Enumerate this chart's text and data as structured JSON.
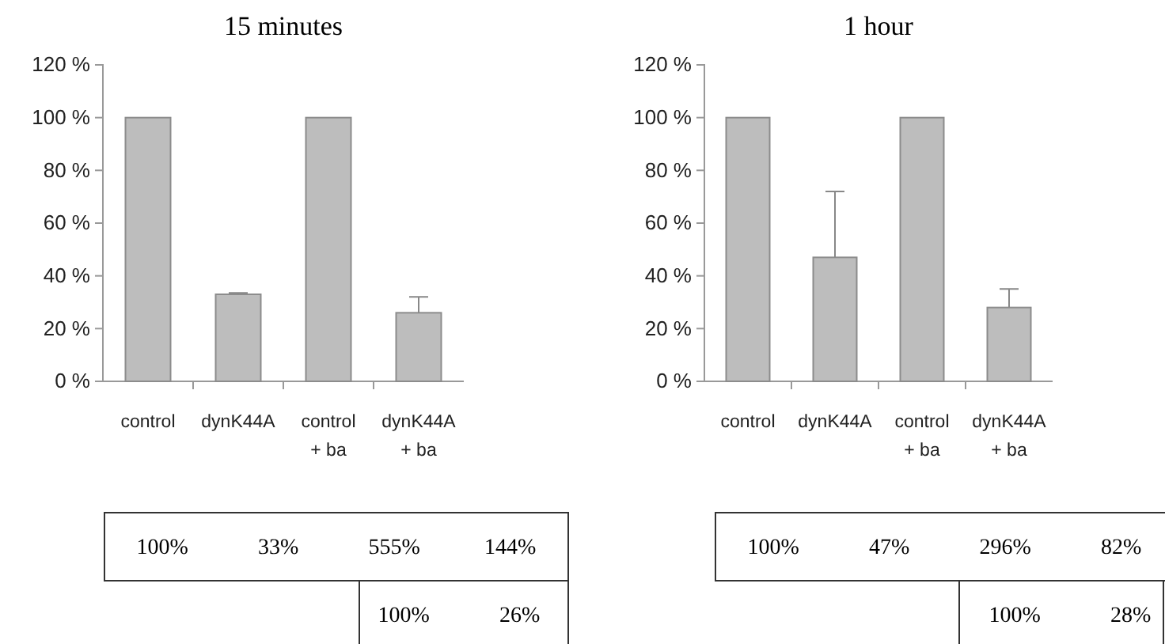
{
  "chart_data": [
    {
      "type": "bar",
      "title": "15 minutes",
      "categories": [
        "control",
        "dynK44A",
        "control\n+ ba",
        "dynK44A\n+ ba"
      ],
      "values": [
        100,
        33,
        100,
        26
      ],
      "errors": [
        null,
        0.5,
        null,
        6
      ],
      "color": "#bdbdbd",
      "ylim": [
        0,
        120
      ],
      "yticks": [
        {
          "value": 0,
          "label": "0 %"
        },
        {
          "value": 20,
          "label": "20 %"
        },
        {
          "value": 40,
          "label": "40 %"
        },
        {
          "value": 60,
          "label": "60 %"
        },
        {
          "value": 80,
          "label": "80 %"
        },
        {
          "value": 100,
          "label": "100 %"
        },
        {
          "value": 120,
          "label": "120 %"
        }
      ],
      "grid": false,
      "annotations": [
        "100%",
        "33%",
        "555%",
        "144%",
        "100%",
        "26%"
      ]
    },
    {
      "type": "bar",
      "title": "1 hour",
      "categories": [
        "control",
        "dynK44A",
        "control\n+ ba",
        "dynK44A\n+ ba"
      ],
      "values": [
        100,
        47,
        100,
        28
      ],
      "errors": [
        null,
        25,
        null,
        7
      ],
      "color": "#bdbdbd",
      "ylim": [
        0,
        120
      ],
      "yticks": [
        {
          "value": 0,
          "label": "0 %"
        },
        {
          "value": 20,
          "label": "20 %"
        },
        {
          "value": 40,
          "label": "40 %"
        },
        {
          "value": 60,
          "label": "60 %"
        },
        {
          "value": 80,
          "label": "80 %"
        },
        {
          "value": 100,
          "label": "100 %"
        },
        {
          "value": 120,
          "label": "120 %"
        }
      ],
      "grid": false,
      "annotations": [
        "100%",
        "47%",
        "296%",
        "82%",
        "100%",
        "28%"
      ]
    }
  ]
}
